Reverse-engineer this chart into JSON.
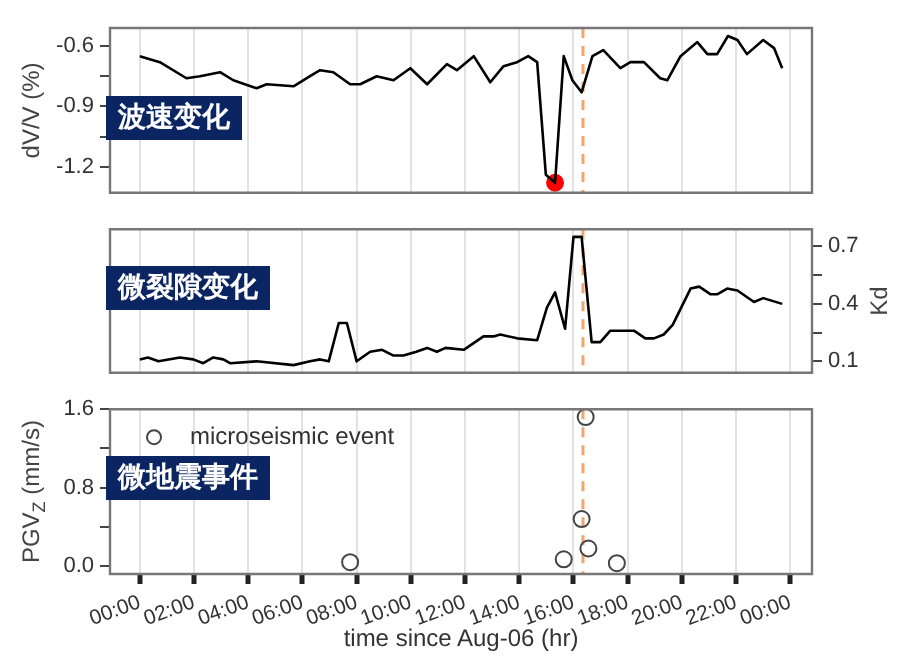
{
  "chart_data": [
    {
      "type": "line",
      "ylabel": "dV/V (%)",
      "annotations": [
        "波速变化"
      ],
      "xlim": [
        -1.1,
        24.8
      ],
      "xticks": [
        {
          "value": 0,
          "label": null
        },
        {
          "value": 2,
          "label": null
        },
        {
          "value": 4,
          "label": null
        },
        {
          "value": 6,
          "label": null
        },
        {
          "value": 8,
          "label": null
        },
        {
          "value": 10,
          "label": null
        },
        {
          "value": 12,
          "label": null
        },
        {
          "value": 14,
          "label": null
        },
        {
          "value": 16,
          "label": null
        },
        {
          "value": 18,
          "label": null
        },
        {
          "value": 20,
          "label": null
        },
        {
          "value": 22,
          "label": null
        },
        {
          "value": 24,
          "label": null
        }
      ],
      "ylim": [
        -1.33,
        -0.51
      ],
      "yticks": [
        -0.6,
        {
          "value": -0.75,
          "label": null
        },
        -0.9,
        {
          "value": -1.05,
          "label": null
        },
        -1.2
      ],
      "grid": "x",
      "tick_labels": "y",
      "marker": "none",
      "ref_lines": [
        {
          "axis": "x",
          "value": 16.35,
          "color": "#f5a46a",
          "line_style": "dashed"
        }
      ],
      "series": [
        {
          "color": "#000000",
          "x": [
            0,
            0.74,
            1.72,
            2.22,
            2.96,
            3.45,
            4.31,
            4.68,
            5.67,
            6.28,
            6.65,
            7.14,
            7.76,
            8.13,
            8.74,
            9.36,
            9.98,
            10.6,
            11.33,
            11.7,
            12.32,
            12.93,
            13.42,
            13.92,
            14.33,
            14.66,
            14.98,
            15.32,
            15.64,
            15.96,
            16.3,
            16.7,
            17.1,
            17.73,
            18.1,
            18.6,
            19.2,
            19.46,
            19.95,
            20.57,
            20.94,
            21.3,
            21.7,
            22.05,
            22.4,
            23.0,
            23.4,
            23.7
          ],
          "values": [
            -0.65,
            -0.68,
            -0.76,
            -0.75,
            -0.73,
            -0.77,
            -0.81,
            -0.79,
            -0.8,
            -0.75,
            -0.72,
            -0.73,
            -0.79,
            -0.79,
            -0.75,
            -0.77,
            -0.71,
            -0.79,
            -0.69,
            -0.72,
            -0.65,
            -0.78,
            -0.7,
            -0.68,
            -0.65,
            -0.68,
            -1.24,
            -1.28,
            -0.65,
            -0.77,
            -0.83,
            -0.65,
            -0.62,
            -0.71,
            -0.68,
            -0.68,
            -0.76,
            -0.77,
            -0.65,
            -0.58,
            -0.64,
            -0.64,
            -0.55,
            -0.57,
            -0.64,
            -0.57,
            -0.61,
            -0.71
          ]
        },
        {
          "type": "scatter",
          "marker": "circle",
          "color": "#ff0000",
          "x": [
            15.32
          ],
          "values": [
            -1.28
          ]
        }
      ]
    },
    {
      "type": "line",
      "y2label": "Kd",
      "annotations": [
        "微裂隙变化"
      ],
      "xlim": [
        -1.1,
        24.8
      ],
      "xticks": [
        {
          "value": 0,
          "label": null
        },
        {
          "value": 2,
          "label": null
        },
        {
          "value": 4,
          "label": null
        },
        {
          "value": 6,
          "label": null
        },
        {
          "value": 8,
          "label": null
        },
        {
          "value": 10,
          "label": null
        },
        {
          "value": 12,
          "label": null
        },
        {
          "value": 14,
          "label": null
        },
        {
          "value": 16,
          "label": null
        },
        {
          "value": 18,
          "label": null
        },
        {
          "value": 20,
          "label": null
        },
        {
          "value": 22,
          "label": null
        },
        {
          "value": 24,
          "label": null
        }
      ],
      "y2lim": [
        0.04,
        0.79
      ],
      "y2ticks": [
        0.1,
        {
          "value": 0.25,
          "label": null
        },
        0.4,
        {
          "value": 0.55,
          "label": null
        },
        0.7
      ],
      "grid": "x",
      "tick_labels": "y",
      "marker": "none",
      "ref_lines": [
        {
          "axis": "x",
          "value": 16.35,
          "color": "#f5a46a",
          "line_style": "dashed"
        }
      ],
      "series": [
        {
          "color": "#000000",
          "axis": "y2",
          "x": [
            0,
            0.3,
            0.69,
            1.48,
            1.97,
            2.34,
            2.71,
            3.08,
            3.33,
            4.31,
            5.67,
            6.28,
            6.65,
            6.97,
            7.34,
            7.64,
            8.0,
            8.5,
            8.94,
            9.36,
            9.73,
            10.2,
            10.6,
            10.96,
            11.28,
            11.95,
            12.68,
            13.05,
            13.3,
            13.92,
            14.66,
            15.02,
            15.32,
            15.69,
            16.0,
            16.3,
            16.67,
            16.99,
            17.36,
            18.23,
            18.65,
            18.97,
            19.33,
            19.66,
            20.32,
            20.64,
            21.06,
            21.3,
            21.67,
            22.05,
            22.66,
            23.0,
            23.7
          ],
          "values": [
            0.11,
            0.12,
            0.1,
            0.12,
            0.11,
            0.09,
            0.12,
            0.11,
            0.09,
            0.1,
            0.08,
            0.1,
            0.11,
            0.1,
            0.3,
            0.3,
            0.1,
            0.15,
            0.16,
            0.13,
            0.13,
            0.15,
            0.17,
            0.15,
            0.17,
            0.16,
            0.23,
            0.23,
            0.24,
            0.22,
            0.21,
            0.38,
            0.46,
            0.27,
            0.75,
            0.75,
            0.2,
            0.2,
            0.26,
            0.26,
            0.22,
            0.22,
            0.24,
            0.29,
            0.48,
            0.49,
            0.45,
            0.45,
            0.48,
            0.47,
            0.41,
            0.43,
            0.4
          ]
        }
      ]
    },
    {
      "type": "scatter",
      "ylabel": "PGV$_{Z}$ (mm/s)",
      "xlabel": "time since Aug-06 (hr)",
      "annotations": [
        "微地震事件"
      ],
      "xlim": [
        -1.1,
        24.8
      ],
      "xticks": [
        {
          "value": 0,
          "label": "00:00"
        },
        {
          "value": 2,
          "label": "02:00"
        },
        {
          "value": 4,
          "label": "04:00"
        },
        {
          "value": 6,
          "label": "06:00"
        },
        {
          "value": 8,
          "label": "08:00"
        },
        {
          "value": 10,
          "label": "10:00"
        },
        {
          "value": 12,
          "label": "12:00"
        },
        {
          "value": 14,
          "label": "14:00"
        },
        {
          "value": 16,
          "label": "16:00"
        },
        {
          "value": 18,
          "label": "18:00"
        },
        {
          "value": 20,
          "label": "20:00"
        },
        {
          "value": 22,
          "label": "22:00"
        },
        {
          "value": 24,
          "label": "00:00"
        }
      ],
      "ylim": [
        -0.08,
        1.6
      ],
      "yticks": [
        {
          "value": 0,
          "label": "0.0"
        },
        {
          "value": 0.4,
          "label": null
        },
        {
          "value": 0.8,
          "label": "0.8"
        },
        {
          "value": 1.2,
          "label": null
        },
        {
          "value": 1.6,
          "label": "1.6"
        }
      ],
      "grid": "x",
      "marker": "circle",
      "legend": "top left",
      "ref_lines": [
        {
          "axis": "x",
          "value": 16.35,
          "color": "#f5a46a",
          "line_style": "dashed"
        }
      ],
      "series": [
        {
          "name": "microseismic event",
          "color": "#444444",
          "x": [
            7.76,
            15.64,
            16.3,
            16.45,
            16.55,
            17.6
          ],
          "values": [
            0.04,
            0.07,
            0.48,
            1.52,
            0.18,
            0.03
          ]
        }
      ]
    }
  ]
}
